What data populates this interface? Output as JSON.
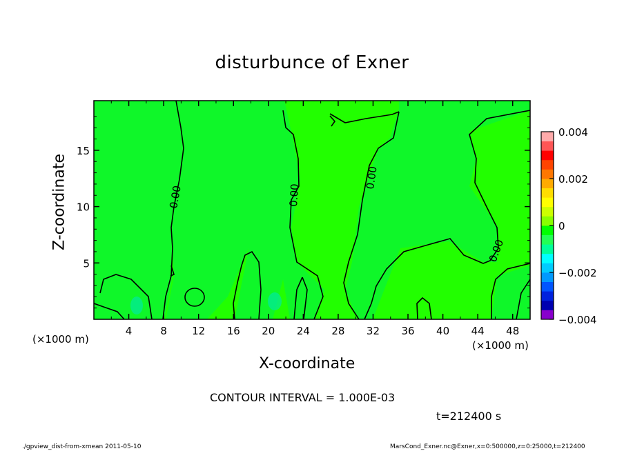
{
  "chart_data": {
    "type": "heatmap",
    "title": "disturbunce of Exner",
    "xlabel": "X-coordinate",
    "ylabel": "Z-coordinate",
    "x_unit_label": "(×1000 m)",
    "x_ticks": [
      4,
      8,
      12,
      16,
      20,
      24,
      28,
      32,
      36,
      40,
      44,
      48
    ],
    "y_ticks": [
      5,
      10,
      15
    ],
    "xlim": [
      0,
      50
    ],
    "ylim": [
      0,
      19.4
    ],
    "contour_labels": [
      "0.00",
      "0.00",
      "0.00",
      "0.00"
    ],
    "contour_interval": "CONTOUR INTERVAL = 1.000E-03",
    "colorbar": {
      "ticks": [
        "0.004",
        "0.002",
        "0",
        "−0.002",
        "−0.004"
      ],
      "range": [
        -0.004,
        0.004
      ],
      "colors": [
        "#8800cc",
        "#0000b0",
        "#0022dd",
        "#0055ff",
        "#0099ff",
        "#00ccff",
        "#00ffff",
        "#00ff99",
        "#22ff55",
        "#00ff00",
        "#88ff00",
        "#ccff00",
        "#ffff00",
        "#ffdd00",
        "#ffaa00",
        "#ff7700",
        "#ff4400",
        "#ff0000",
        "#ff5555",
        "#ffaaaa"
      ]
    },
    "time": "t=212400 s"
  },
  "footer": {
    "left": "./gpview_dist-from-xmean  2011-05-10",
    "right": "MarsCond_Exner.nc@Exner,x=0:500000,z=0:25000,t=212400"
  }
}
